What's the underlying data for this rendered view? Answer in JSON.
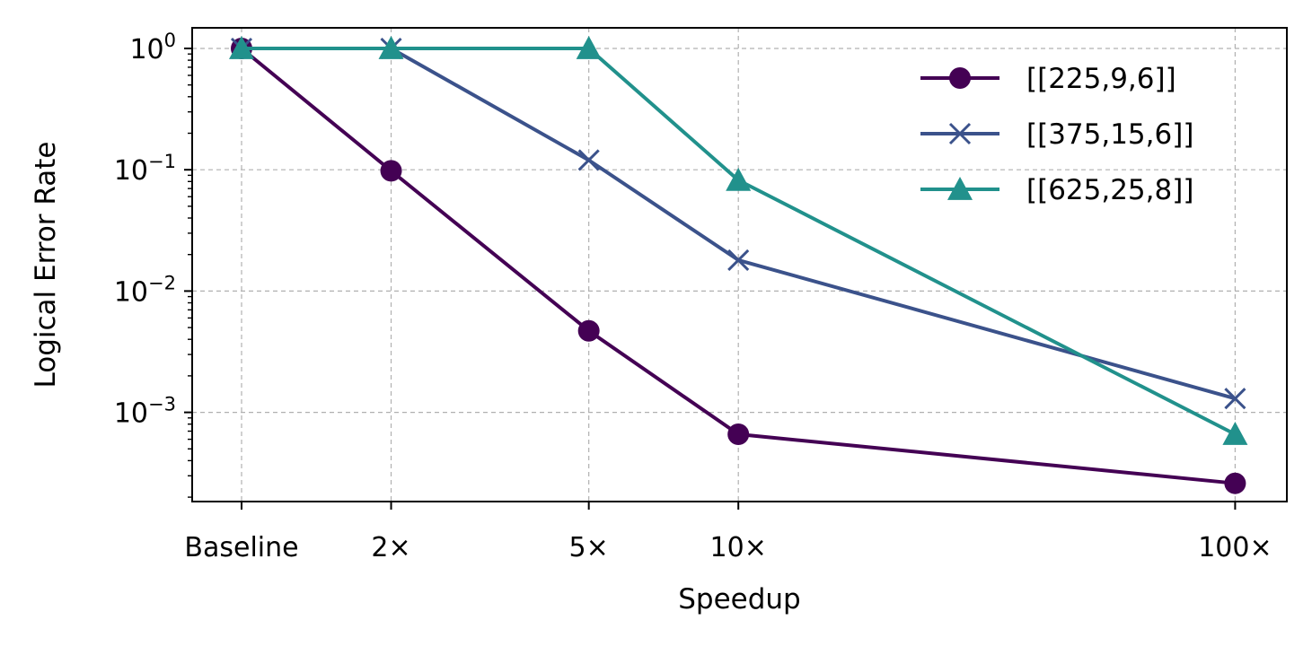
{
  "chart_data": {
    "type": "line",
    "title": "",
    "xlabel": "Speedup",
    "ylabel": "Logical Error Rate",
    "categories": [
      "Baseline",
      "2×",
      "5×",
      "10×",
      "100×"
    ],
    "x_speedup": [
      1,
      2,
      5,
      10,
      100
    ],
    "x_scale": "log",
    "y_scale": "log",
    "ylim": [
      0.00017,
      1.6
    ],
    "yticks": [
      1,
      0.1,
      0.01,
      0.001
    ],
    "ytick_labels": [
      {
        "base": "10",
        "exp": "0"
      },
      {
        "base": "10",
        "exp": "−1"
      },
      {
        "base": "10",
        "exp": "−2"
      },
      {
        "base": "10",
        "exp": "−3"
      }
    ],
    "grid": true,
    "legend_position": "top-right",
    "series": [
      {
        "name": "[[225,9,6]]",
        "marker": "circle",
        "color": "#440154",
        "values": [
          1.0,
          0.098,
          0.0047,
          0.00066,
          0.00026
        ]
      },
      {
        "name": "[[375,15,6]]",
        "marker": "x",
        "color": "#3b528b",
        "values": [
          1.0,
          1.0,
          0.12,
          0.018,
          0.0013
        ]
      },
      {
        "name": "[[625,25,8]]",
        "marker": "triangle",
        "color": "#21918c",
        "values": [
          1.0,
          1.0,
          1.0,
          0.082,
          0.00066
        ]
      }
    ]
  }
}
